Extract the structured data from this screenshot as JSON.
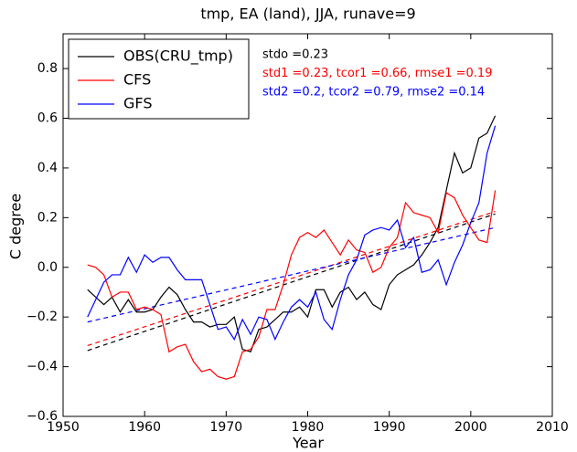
{
  "chart_data": {
    "type": "line",
    "title": "tmp, EA (land), JJA, runave=9",
    "x_label": "Year",
    "y_label": "C degree",
    "x": [
      1953,
      1954,
      1955,
      1956,
      1957,
      1958,
      1959,
      1960,
      1961,
      1962,
      1963,
      1964,
      1965,
      1966,
      1967,
      1968,
      1969,
      1970,
      1971,
      1972,
      1973,
      1974,
      1975,
      1976,
      1977,
      1978,
      1979,
      1980,
      1981,
      1982,
      1983,
      1984,
      1985,
      1986,
      1987,
      1988,
      1989,
      1990,
      1991,
      1992,
      1993,
      1994,
      1995,
      1996,
      1997,
      1998,
      1999,
      2000,
      2001,
      2002,
      2003
    ],
    "series": [
      {
        "name": "OBS(CRU_tmp)",
        "color": "#000000",
        "values": [
          -0.09,
          -0.12,
          -0.15,
          -0.12,
          -0.18,
          -0.13,
          -0.18,
          -0.18,
          -0.17,
          -0.12,
          -0.08,
          -0.11,
          -0.17,
          -0.22,
          -0.22,
          -0.24,
          -0.23,
          -0.23,
          -0.2,
          -0.33,
          -0.34,
          -0.25,
          -0.24,
          -0.21,
          -0.18,
          -0.18,
          -0.16,
          -0.2,
          -0.09,
          -0.09,
          -0.16,
          -0.1,
          -0.08,
          -0.13,
          -0.1,
          -0.15,
          -0.17,
          -0.07,
          -0.03,
          -0.01,
          0.01,
          0.05,
          0.1,
          0.16,
          0.31,
          0.46,
          0.38,
          0.4,
          0.52,
          0.54,
          0.61
        ]
      },
      {
        "name": "CFS",
        "color": "#ff0000",
        "values": [
          0.01,
          0.0,
          -0.03,
          -0.12,
          -0.1,
          -0.1,
          -0.17,
          -0.16,
          -0.17,
          -0.19,
          -0.34,
          -0.32,
          -0.31,
          -0.38,
          -0.42,
          -0.41,
          -0.44,
          -0.45,
          -0.44,
          -0.34,
          -0.33,
          -0.28,
          -0.17,
          -0.17,
          -0.07,
          0.05,
          0.12,
          0.14,
          0.12,
          0.15,
          0.1,
          0.05,
          0.11,
          0.07,
          0.06,
          -0.02,
          0.0,
          0.08,
          0.12,
          0.26,
          0.22,
          0.21,
          0.2,
          0.14,
          0.3,
          0.28,
          0.21,
          0.16,
          0.11,
          0.1,
          0.31
        ]
      },
      {
        "name": "GFS",
        "color": "#0000ff",
        "values": [
          -0.2,
          -0.13,
          -0.06,
          -0.03,
          -0.03,
          0.04,
          -0.02,
          0.05,
          0.02,
          0.04,
          0.04,
          -0.01,
          -0.05,
          -0.05,
          -0.05,
          -0.15,
          -0.25,
          -0.24,
          -0.29,
          -0.21,
          -0.27,
          -0.2,
          -0.21,
          -0.29,
          -0.22,
          -0.16,
          -0.13,
          -0.16,
          -0.1,
          -0.21,
          -0.25,
          -0.13,
          -0.03,
          0.03,
          0.13,
          0.15,
          0.16,
          0.15,
          0.19,
          0.08,
          0.12,
          -0.02,
          -0.01,
          0.03,
          -0.07,
          0.02,
          0.09,
          0.18,
          0.26,
          0.46,
          0.57
        ]
      }
    ],
    "trend_lines": [
      {
        "color": "#000000",
        "x": [
          1953,
          2003
        ],
        "values": [
          -0.335,
          0.215
        ]
      },
      {
        "color": "#ff0000",
        "x": [
          1953,
          2003
        ],
        "values": [
          -0.315,
          0.225
        ]
      },
      {
        "color": "#0000ff",
        "x": [
          1953,
          2003
        ],
        "values": [
          -0.22,
          0.16
        ]
      }
    ],
    "annotations": [
      {
        "text": "stdo =0.23",
        "color": "#000000"
      },
      {
        "text": "std1 =0.23, tcor1 =0.66, rmse1 =0.19",
        "color": "#ff0000"
      },
      {
        "text": "std2 =0.2, tcor2 =0.79, rmse2 =0.14",
        "color": "#0000ff"
      }
    ],
    "xlim": [
      1950,
      2010
    ],
    "xticks": [
      1950,
      1960,
      1970,
      1980,
      1990,
      2000,
      2010
    ],
    "ylim": [
      -0.6,
      0.94
    ],
    "yticks": [
      {
        "value": -0.6,
        "label": "−0.6"
      },
      {
        "value": -0.4,
        "label": "−0.4"
      },
      {
        "value": -0.2,
        "label": "−0.2"
      },
      {
        "value": 0,
        "label": "0.0"
      },
      0.2,
      0.4,
      0.6,
      0.8
    ],
    "legend": "upper left"
  }
}
